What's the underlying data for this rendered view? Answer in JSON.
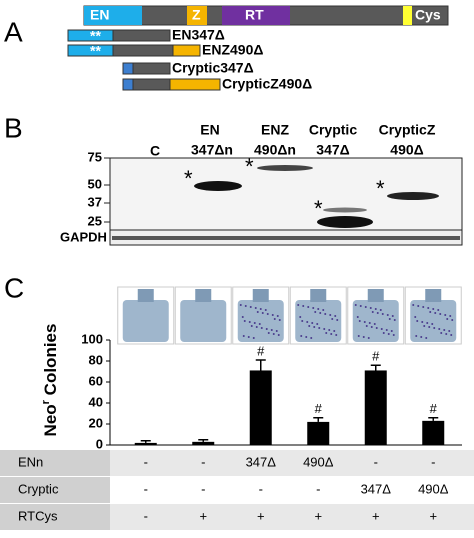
{
  "panel_a": {
    "label": "A",
    "full": {
      "en": "EN",
      "z": "Z",
      "rt": "RT",
      "cys": "Cys"
    },
    "constructs": [
      "EN347Δ",
      "ENZ490Δ",
      "Cryptic347Δ",
      "CrypticZ490Δ"
    ],
    "stars": [
      "**",
      "**"
    ]
  },
  "panel_b": {
    "label": "B",
    "lanes": [
      [
        "C"
      ],
      [
        "EN",
        "347Δn"
      ],
      [
        "ENZ",
        "490Δn"
      ],
      [
        "Cryptic",
        "347Δ"
      ],
      [
        "CrypticZ",
        "490Δ"
      ]
    ],
    "mw": [
      "75",
      "50",
      "37",
      "25"
    ],
    "asterisks": [
      "*",
      "*",
      "*",
      "*"
    ],
    "loading": "GAPDH"
  },
  "panel_c": {
    "label": "C"
  },
  "chart_data": {
    "type": "bar",
    "ylabel": {
      "base": "Neo",
      "sup": "r",
      "rest": " Colonies"
    },
    "categories": [
      null,
      null,
      null,
      null,
      null,
      null
    ],
    "values": [
      2,
      3,
      71,
      22,
      71,
      23
    ],
    "errors": [
      2,
      2,
      10,
      4,
      5,
      3
    ],
    "markers": [
      null,
      null,
      "#",
      "#",
      "#",
      "#"
    ],
    "color": "#000000",
    "ylim": [
      0,
      100
    ],
    "yticks": [
      0,
      20,
      40,
      60,
      80,
      100
    ]
  },
  "table": {
    "rows": [
      [
        "ENn",
        "-",
        "-",
        "347Δ",
        "490Δ",
        "-",
        "-"
      ],
      [
        "Cryptic",
        "-",
        "-",
        "-",
        "-",
        "347Δ",
        "490Δ"
      ],
      [
        "RTCys",
        "-",
        "+",
        "+",
        "+",
        "+",
        "+"
      ]
    ]
  }
}
